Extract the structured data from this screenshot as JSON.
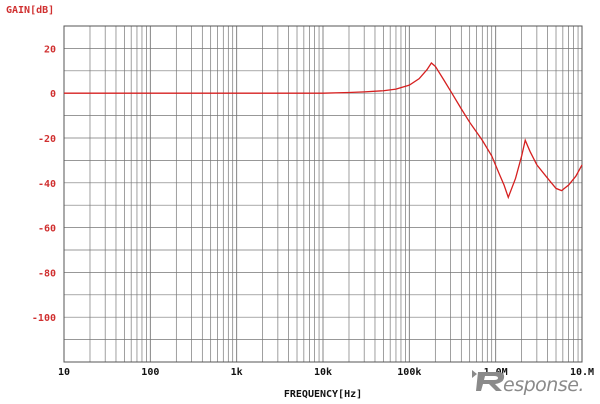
{
  "chart_data": {
    "type": "line",
    "xscale": "log",
    "xlabel": "FREQUENCY[Hz]",
    "ylabel": "GAIN[dB]",
    "xlim": [
      10,
      10000000
    ],
    "ylim": [
      -120,
      30
    ],
    "grid": true,
    "line_color": "#d62020",
    "axis_label_color": "#d03030",
    "grid_color": "#777777",
    "x_ticks": [
      {
        "value": 10,
        "label": "10"
      },
      {
        "value": 100,
        "label": "100"
      },
      {
        "value": 1000,
        "label": "1k"
      },
      {
        "value": 10000,
        "label": "10k"
      },
      {
        "value": 100000,
        "label": "100k"
      },
      {
        "value": 1000000,
        "label": "1.0M"
      },
      {
        "value": 10000000,
        "label": "10.M"
      }
    ],
    "y_ticks": [
      {
        "value": 20,
        "label": "20"
      },
      {
        "value": 0,
        "label": "0"
      },
      {
        "value": -20,
        "label": "-20"
      },
      {
        "value": -40,
        "label": "-40"
      },
      {
        "value": -60,
        "label": "-60"
      },
      {
        "value": -80,
        "label": "-80"
      },
      {
        "value": -100,
        "label": "-100"
      }
    ],
    "series": [
      {
        "x": [
          10,
          100,
          1000,
          10000,
          20000,
          30000,
          50000,
          70000,
          100000,
          130000,
          160000,
          180000,
          200000,
          250000,
          300000,
          400000,
          500000,
          700000,
          900000,
          1100000,
          1250000,
          1400000,
          1700000,
          2000000,
          2200000,
          2500000,
          3000000,
          4000000,
          5000000,
          5800000,
          7000000,
          8500000,
          10000000
        ],
        "y": [
          0,
          0,
          0,
          0,
          0.3,
          0.6,
          1.1,
          1.8,
          3.6,
          6.5,
          10.5,
          13.5,
          12,
          6,
          1,
          -7,
          -13,
          -21,
          -28,
          -36,
          -41,
          -46.5,
          -38,
          -28,
          -21,
          -26,
          -32,
          -38,
          -42.5,
          -43.5,
          -41,
          -37,
          -32
        ]
      }
    ]
  },
  "watermark": {
    "text": "esponse."
  }
}
